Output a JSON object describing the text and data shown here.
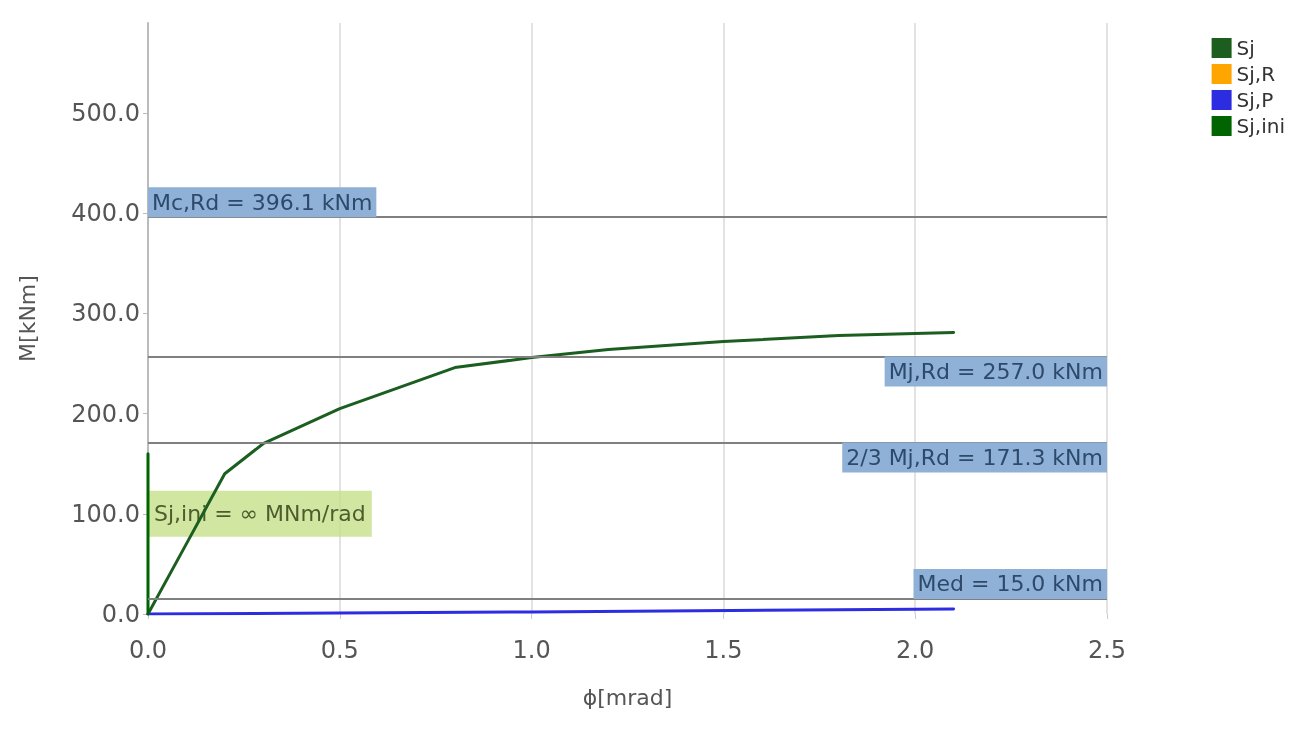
{
  "chart_data": {
    "type": "line",
    "xlabel": "ϕ[mrad]",
    "ylabel": "M[kNm]",
    "xlim": [
      0,
      2.5
    ],
    "xticks": [
      {
        "value": 0,
        "label": "0.0"
      },
      {
        "value": 0.5,
        "label": "0.5"
      },
      {
        "value": 1,
        "label": "1.0"
      },
      {
        "value": 1.5,
        "label": "1.5"
      },
      {
        "value": 2,
        "label": "2.0"
      },
      {
        "value": 2.5,
        "label": "2.5"
      }
    ],
    "ylim": [
      0,
      590
    ],
    "yticks": [
      {
        "value": 0,
        "label": "0.0"
      },
      {
        "value": 100,
        "label": "100.0"
      },
      {
        "value": 200,
        "label": "200.0"
      },
      {
        "value": 300,
        "label": "300.0"
      },
      {
        "value": 400,
        "label": "400.0"
      },
      {
        "value": 500,
        "label": "500.0"
      }
    ],
    "grid": "x",
    "legend": "top right",
    "marker": "none",
    "line_style": "solid",
    "series": [
      {
        "name": "Sj",
        "color": "#1b5e20",
        "x": [
          0,
          0.1,
          0.2,
          0.3,
          0.5,
          0.8,
          1.0,
          1.2,
          1.5,
          1.8,
          2.1
        ],
        "values": [
          0,
          70,
          140,
          170,
          205,
          246,
          256,
          264,
          272,
          278,
          281
        ]
      },
      {
        "name": "Sj,R",
        "color": "#ffa500"
      },
      {
        "name": "Sj,P",
        "color": "#2c2ce0",
        "x": [
          0,
          1.0,
          2.1
        ],
        "values": [
          0,
          2,
          5
        ]
      },
      {
        "name": "Sj,ini",
        "color": "#006400",
        "x": [
          0,
          0
        ],
        "values": [
          0,
          160
        ]
      }
    ],
    "ref_lines": [
      {
        "axis": "y",
        "value": 396.1,
        "label": "Mc,Rd = 396.1 kNm",
        "color": "#808080"
      },
      {
        "axis": "y",
        "value": 257.0,
        "label": "Mj,Rd = 257.0 kNm",
        "color": "#808080"
      },
      {
        "axis": "y",
        "value": 171.3,
        "label": "2/3 Mj,Rd = 171.3 kNm",
        "color": "#808080"
      },
      {
        "axis": "y",
        "value": 15.0,
        "label": "Med = 15.0 kNm",
        "color": "#808080"
      }
    ],
    "annotations": [
      {
        "text": "Sj,ini = ∞ MNm/rad",
        "x": 0,
        "y": 100
      }
    ]
  }
}
